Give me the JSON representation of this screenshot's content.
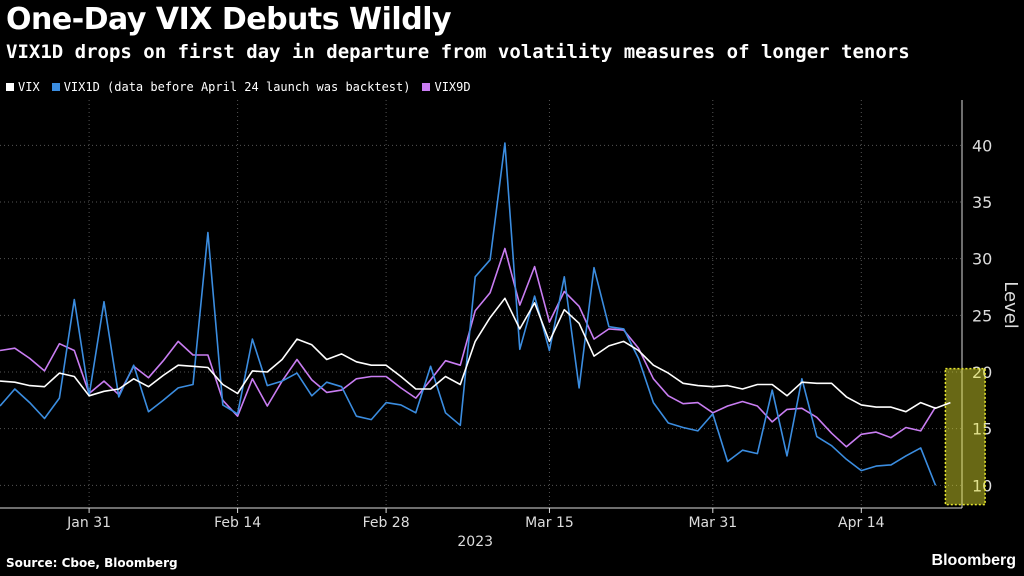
{
  "title": "One-Day VIX Debuts Wildly",
  "subtitle": "VIX1D drops on first day in departure from volatility measures of longer tenors",
  "source": "Source: Cboe, Bloomberg",
  "brand": "Bloomberg",
  "chart_data": {
    "type": "line",
    "title": "One-Day VIX Debuts Wildly",
    "xlabel": "2023",
    "ylabel": "Level",
    "ylim": [
      8,
      44
    ],
    "yticks": [
      10,
      15,
      20,
      25,
      30,
      35,
      40
    ],
    "x_tick_labels": [
      "Jan 31",
      "Feb 14",
      "Feb 28",
      "Mar 15",
      "Mar 31",
      "Apr 14"
    ],
    "x_tick_index": [
      6,
      16,
      26,
      37,
      48,
      58
    ],
    "year_label": "2023",
    "highlight": {
      "from_index": 64,
      "to_index": 66,
      "ymin": 8.3,
      "ymax": 20.3,
      "color": "#e6e62e"
    },
    "series": [
      {
        "name": "VIX",
        "legend": "VIX",
        "color": "#ffffff",
        "values": [
          19.2,
          19.1,
          18.8,
          18.7,
          19.9,
          19.6,
          17.9,
          18.3,
          18.5,
          19.4,
          18.7,
          19.7,
          20.6,
          20.5,
          20.4,
          18.9,
          18.1,
          20.1,
          20.0,
          21.1,
          22.9,
          22.4,
          21.1,
          21.6,
          20.9,
          20.6,
          20.6,
          19.6,
          18.5,
          18.5,
          19.6,
          18.9,
          22.7,
          24.8,
          26.5,
          23.8,
          26.1,
          22.7,
          25.5,
          24.3,
          21.4,
          22.3,
          22.7,
          21.9,
          20.6,
          19.9,
          19.0,
          18.8,
          18.7,
          18.8,
          18.5,
          18.9,
          18.9,
          17.9,
          19.1,
          19.0,
          19.0,
          17.8,
          17.1,
          16.9,
          16.9,
          16.5,
          17.3,
          16.8,
          17.3
        ]
      },
      {
        "name": "VIX1D",
        "legend": "VIX1D (data before April 24 launch was backtest)",
        "color": "#3b8de0",
        "values": [
          17.0,
          18.5,
          17.3,
          15.9,
          17.7,
          26.4,
          17.9,
          26.2,
          17.8,
          20.6,
          16.5,
          17.5,
          18.6,
          18.9,
          32.3,
          17.1,
          16.3,
          22.9,
          18.8,
          19.2,
          19.9,
          17.9,
          19.1,
          18.7,
          16.1,
          15.8,
          17.3,
          17.1,
          16.4,
          20.5,
          16.4,
          15.3,
          28.4,
          29.9,
          40.2,
          22.0,
          26.7,
          21.9,
          28.4,
          18.6,
          29.2,
          24.0,
          23.8,
          21.2,
          17.3,
          15.5,
          15.1,
          14.8,
          16.3,
          12.1,
          13.1,
          12.8,
          18.4,
          12.6,
          19.4,
          14.3,
          13.5,
          12.3,
          11.3,
          11.7,
          11.8,
          12.6,
          13.3,
          10.0
        ]
      },
      {
        "name": "VIX9D",
        "legend": "VIX9D",
        "color": "#c97df2",
        "values": [
          21.9,
          22.1,
          21.2,
          20.1,
          22.5,
          21.9,
          18.1,
          19.2,
          18.0,
          20.5,
          19.5,
          21.0,
          22.7,
          21.5,
          21.5,
          17.5,
          16.1,
          19.4,
          17.0,
          19.2,
          21.1,
          19.3,
          18.2,
          18.4,
          19.4,
          19.6,
          19.6,
          18.6,
          17.7,
          19.3,
          21.0,
          20.6,
          25.4,
          27.0,
          30.9,
          25.9,
          29.3,
          24.4,
          27.1,
          25.8,
          22.9,
          23.8,
          23.7,
          22.1,
          19.4,
          17.9,
          17.2,
          17.3,
          16.4,
          17.0,
          17.4,
          17.0,
          15.6,
          16.7,
          16.8,
          16.0,
          14.6,
          13.4,
          14.5,
          14.7,
          14.2,
          15.1,
          14.8,
          16.9
        ]
      }
    ]
  }
}
